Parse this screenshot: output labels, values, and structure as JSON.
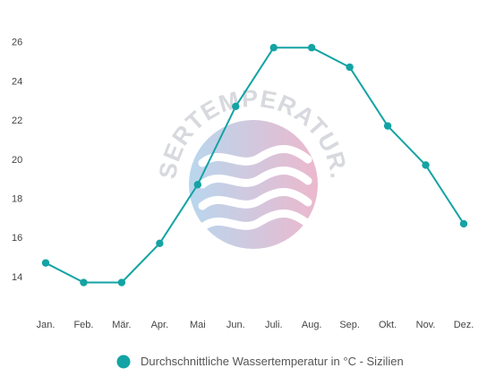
{
  "chart_data": {
    "type": "line",
    "categories": [
      "Jan.",
      "Feb.",
      "Mär.",
      "Apr.",
      "Mai",
      "Jun.",
      "Juli.",
      "Aug.",
      "Sep.",
      "Okt.",
      "Nov.",
      "Dez."
    ],
    "series": [
      {
        "name": "Durchschnittliche Wassertemperatur in °C - Sizilien",
        "values": [
          14.7,
          13.7,
          13.7,
          15.7,
          18.7,
          22.7,
          25.7,
          25.7,
          24.7,
          21.7,
          19.7,
          16.7
        ]
      }
    ],
    "yticks": [
      14,
      16,
      18,
      20,
      22,
      24,
      26
    ],
    "ylim": [
      12.9,
      26.9
    ],
    "title": "",
    "xlabel": "",
    "ylabel": "",
    "grid": false,
    "legend_position": "bottom-center",
    "line_color": "#14a3a4"
  },
  "watermark": {
    "text": "WASSERTEMPERATUR.ORG",
    "circle_color_left": "#b8d7ee",
    "circle_color_right": "#ecb8cd",
    "wave_color": "#ffffff",
    "text_color": "#d7d9de"
  }
}
